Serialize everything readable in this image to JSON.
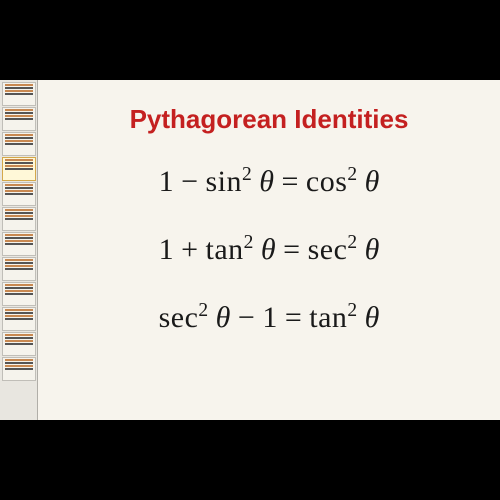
{
  "title": "Pythagorean Identities",
  "title_color": "#c42020",
  "title_fontsize": 26,
  "equation_color": "#1a1a1a",
  "equation_fontsize": 30,
  "background_color": "#f7f4ed",
  "body_background": "#000000",
  "equations": {
    "eq1": {
      "lhs_prefix": "1 − ",
      "lhs_func": "sin",
      "lhs_exp": "2",
      "lhs_var": "θ",
      "rhs_func": "cos",
      "rhs_exp": "2",
      "rhs_var": "θ"
    },
    "eq2": {
      "lhs_prefix": "1 + ",
      "lhs_func": "tan",
      "lhs_exp": "2",
      "lhs_var": "θ",
      "rhs_func": "sec",
      "rhs_exp": "2",
      "rhs_var": "θ"
    },
    "eq3": {
      "lhs_func": "sec",
      "lhs_exp": "2",
      "lhs_var": "θ",
      "lhs_suffix": " − 1",
      "rhs_func": "tan",
      "rhs_exp": "2",
      "rhs_var": "θ"
    }
  },
  "equals": " = ",
  "sidebar": {
    "thumb_count": 12,
    "active_index": 3
  }
}
